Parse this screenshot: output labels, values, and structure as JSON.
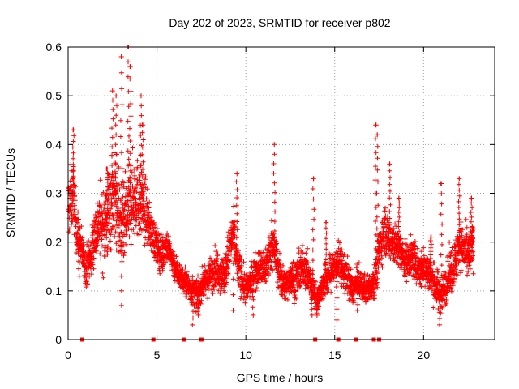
{
  "chart_data": {
    "type": "scatter",
    "title": "Day 202 of 2023, SRMTID for receiver p802",
    "xlabel": "GPS time / hours",
    "ylabel": "SRMTID / TECUs",
    "xlim": [
      0,
      24
    ],
    "ylim": [
      0,
      0.6
    ],
    "x_ticks": [
      0,
      5,
      10,
      15,
      20
    ],
    "x_tick_labels": [
      "0",
      "5",
      "10",
      "15",
      "20"
    ],
    "y_ticks": [
      0,
      0.1,
      0.2,
      0.3,
      0.4,
      0.5,
      0.6
    ],
    "y_tick_labels": [
      "0",
      "0.1",
      "0.2",
      "0.3",
      "0.4",
      "0.5",
      "0.6"
    ],
    "grid": true,
    "marker": "plus",
    "series_color": "#ff0000",
    "series": [
      {
        "name": "SRMTID",
        "trend_x": [
          0.0,
          0.3,
          0.5,
          0.8,
          1.0,
          1.3,
          1.5,
          1.8,
          2.0,
          2.3,
          2.5,
          2.8,
          3.0,
          3.3,
          3.5,
          3.8,
          4.0,
          4.3,
          4.5,
          4.8,
          5.0,
          5.3,
          5.5,
          5.8,
          6.0,
          6.3,
          6.5,
          6.8,
          7.0,
          7.3,
          7.5,
          7.8,
          8.0,
          8.3,
          8.5,
          8.8,
          9.0,
          9.3,
          9.5,
          9.8,
          10.0,
          10.3,
          10.5,
          10.8,
          11.0,
          11.3,
          11.5,
          11.8,
          12.0,
          12.3,
          12.5,
          12.8,
          13.0,
          13.3,
          13.5,
          13.8,
          14.0,
          14.3,
          14.5,
          14.8,
          15.0,
          15.3,
          15.5,
          15.8,
          16.0,
          16.3,
          16.5,
          16.8,
          17.0,
          17.3,
          17.5,
          17.8,
          18.0,
          18.3,
          18.5,
          18.8,
          19.0,
          19.3,
          19.5,
          19.8,
          20.0,
          20.3,
          20.5,
          20.8,
          21.0,
          21.3,
          21.5,
          21.8,
          22.0,
          22.3,
          22.5,
          22.8
        ],
        "trend_y": [
          0.27,
          0.3,
          0.22,
          0.18,
          0.15,
          0.17,
          0.22,
          0.24,
          0.23,
          0.26,
          0.3,
          0.27,
          0.22,
          0.25,
          0.28,
          0.3,
          0.28,
          0.27,
          0.24,
          0.21,
          0.19,
          0.17,
          0.2,
          0.17,
          0.15,
          0.13,
          0.12,
          0.11,
          0.1,
          0.09,
          0.11,
          0.12,
          0.13,
          0.15,
          0.14,
          0.13,
          0.17,
          0.22,
          0.16,
          0.12,
          0.1,
          0.12,
          0.14,
          0.15,
          0.14,
          0.17,
          0.2,
          0.15,
          0.12,
          0.11,
          0.13,
          0.12,
          0.14,
          0.15,
          0.13,
          0.1,
          0.08,
          0.11,
          0.12,
          0.14,
          0.15,
          0.16,
          0.14,
          0.12,
          0.1,
          0.12,
          0.11,
          0.1,
          0.11,
          0.13,
          0.18,
          0.23,
          0.21,
          0.2,
          0.19,
          0.17,
          0.16,
          0.17,
          0.16,
          0.14,
          0.15,
          0.14,
          0.12,
          0.1,
          0.09,
          0.12,
          0.14,
          0.16,
          0.2,
          0.18,
          0.17,
          0.19
        ],
        "spread": [
          0.07,
          0.07,
          0.05,
          0.04,
          0.04,
          0.05,
          0.06,
          0.07,
          0.09,
          0.1,
          0.1,
          0.1,
          0.09,
          0.09,
          0.09,
          0.09,
          0.08,
          0.07,
          0.05,
          0.04,
          0.04,
          0.04,
          0.04,
          0.03,
          0.03,
          0.03,
          0.03,
          0.03,
          0.03,
          0.03,
          0.03,
          0.03,
          0.04,
          0.04,
          0.04,
          0.04,
          0.05,
          0.05,
          0.04,
          0.04,
          0.03,
          0.03,
          0.04,
          0.04,
          0.04,
          0.05,
          0.05,
          0.04,
          0.04,
          0.03,
          0.04,
          0.04,
          0.04,
          0.04,
          0.04,
          0.03,
          0.03,
          0.03,
          0.04,
          0.04,
          0.04,
          0.04,
          0.04,
          0.04,
          0.03,
          0.03,
          0.03,
          0.03,
          0.03,
          0.04,
          0.05,
          0.05,
          0.05,
          0.05,
          0.04,
          0.04,
          0.04,
          0.04,
          0.04,
          0.04,
          0.04,
          0.04,
          0.04,
          0.04,
          0.04,
          0.04,
          0.05,
          0.05,
          0.05,
          0.05,
          0.05,
          0.05
        ],
        "points_per_hour": 160,
        "spikes": [
          {
            "x": 0.3,
            "y": 0.43
          },
          {
            "x": 2.2,
            "y": 0.35
          },
          {
            "x": 2.5,
            "y": 0.51
          },
          {
            "x": 2.7,
            "y": 0.5
          },
          {
            "x": 3.0,
            "y": 0.58
          },
          {
            "x": 3.4,
            "y": 0.6
          },
          {
            "x": 3.5,
            "y": 0.56
          },
          {
            "x": 4.1,
            "y": 0.5
          },
          {
            "x": 4.2,
            "y": 0.44
          },
          {
            "x": 9.5,
            "y": 0.34
          },
          {
            "x": 11.6,
            "y": 0.4
          },
          {
            "x": 13.8,
            "y": 0.33
          },
          {
            "x": 14.5,
            "y": 0.24
          },
          {
            "x": 17.3,
            "y": 0.44
          },
          {
            "x": 17.4,
            "y": 0.42
          },
          {
            "x": 18.1,
            "y": 0.36
          },
          {
            "x": 18.6,
            "y": 0.29
          },
          {
            "x": 20.4,
            "y": 0.21
          },
          {
            "x": 21.0,
            "y": 0.32
          },
          {
            "x": 22.0,
            "y": 0.33
          },
          {
            "x": 22.7,
            "y": 0.29
          }
        ],
        "dips": [
          {
            "x": 0.6,
            "y": 0.13
          },
          {
            "x": 3.0,
            "y": 0.07
          },
          {
            "x": 7.0,
            "y": 0.03
          },
          {
            "x": 7.3,
            "y": 0.05
          },
          {
            "x": 9.3,
            "y": 0.06
          },
          {
            "x": 10.4,
            "y": 0.05
          },
          {
            "x": 13.7,
            "y": 0.05
          },
          {
            "x": 15.1,
            "y": 0.04
          },
          {
            "x": 16.3,
            "y": 0.06
          },
          {
            "x": 20.9,
            "y": 0.03
          }
        ],
        "baseline_markers_x": [
          0.8,
          4.8,
          6.5,
          7.5,
          13.9,
          15.2,
          16.2,
          17.2,
          17.5
        ]
      }
    ]
  }
}
